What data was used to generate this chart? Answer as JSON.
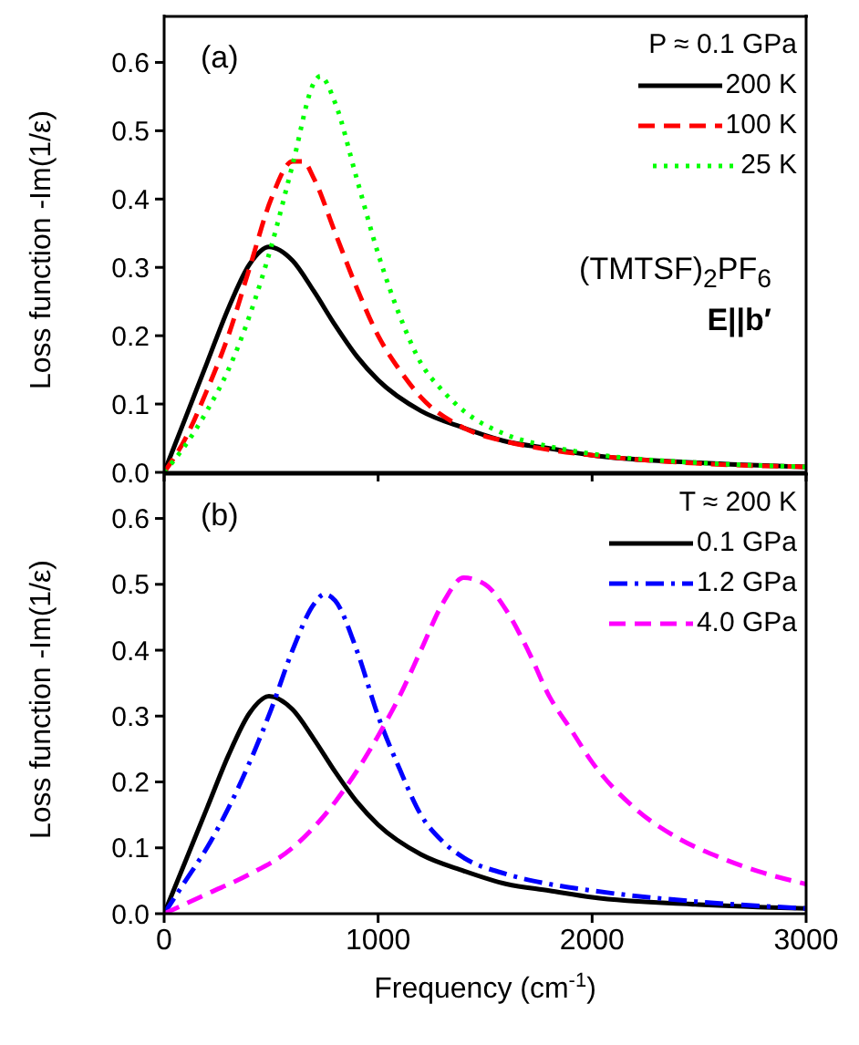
{
  "chart_data": [
    {
      "type": "line",
      "ylabel": "Loss function -Im(1/ε)",
      "legend_title": "P ≈ 0.1 GPa",
      "legend": "top right",
      "tick_labels": "y",
      "annotations": [
        "(a)",
        "(TMTSF)$_{2}$PF$_{6}$",
        "E||b′"
      ],
      "xlim": [
        0,
        3000
      ],
      "xticks": [
        0,
        1000,
        2000,
        3000
      ],
      "ylim": [
        0,
        0.67
      ],
      "yticks": [
        {
          "value": 0,
          "label": "0.0"
        },
        0.1,
        0.2,
        0.3,
        0.4,
        0.5,
        0.6
      ],
      "series": [
        {
          "name": "200 K",
          "color": "#000000",
          "line_style": "solid",
          "x": [
            0,
            100,
            200,
            300,
            400,
            490,
            600,
            700,
            800,
            900,
            1000,
            1200,
            1400,
            1600,
            1800,
            2000,
            2500,
            3000
          ],
          "values": [
            0,
            0.08,
            0.16,
            0.24,
            0.305,
            0.33,
            0.31,
            0.265,
            0.215,
            0.17,
            0.135,
            0.09,
            0.065,
            0.045,
            0.035,
            0.025,
            0.014,
            0.008
          ]
        },
        {
          "name": "100 K",
          "color": "#ff0000",
          "line_style": "dashed",
          "x": [
            0,
            100,
            200,
            300,
            400,
            500,
            600,
            650,
            700,
            800,
            900,
            1000,
            1100,
            1200,
            1400,
            1600,
            1800,
            2000,
            2500,
            3000
          ],
          "values": [
            0,
            0.05,
            0.12,
            0.2,
            0.3,
            0.4,
            0.455,
            0.455,
            0.43,
            0.35,
            0.27,
            0.2,
            0.15,
            0.11,
            0.065,
            0.045,
            0.033,
            0.025,
            0.013,
            0.008
          ]
        },
        {
          "name": "25 K",
          "color": "#00ff00",
          "line_style": "dotted",
          "x": [
            0,
            100,
            200,
            300,
            400,
            500,
            600,
            700,
            730,
            800,
            900,
            1000,
            1100,
            1200,
            1300,
            1400,
            1600,
            1800,
            2000,
            2500,
            3000
          ],
          "values": [
            0,
            0.04,
            0.09,
            0.15,
            0.23,
            0.33,
            0.45,
            0.57,
            0.58,
            0.54,
            0.43,
            0.32,
            0.23,
            0.16,
            0.12,
            0.09,
            0.055,
            0.038,
            0.027,
            0.014,
            0.008
          ]
        }
      ]
    },
    {
      "type": "line",
      "xlabel": "Frequency (cm$^{-1}$)",
      "ylabel": "Loss function -Im(1/ε)",
      "legend_title": "T ≈ 200 K",
      "legend": "top right",
      "annotations": [
        "(b)"
      ],
      "xlim": [
        0,
        3000
      ],
      "xticks": [
        0,
        1000,
        2000,
        3000
      ],
      "ylim": [
        0,
        0.67
      ],
      "yticks": [
        {
          "value": 0,
          "label": "0.0"
        },
        0.1,
        0.2,
        0.3,
        0.4,
        0.5,
        0.6
      ],
      "series": [
        {
          "name": "0.1 GPa",
          "color": "#000000",
          "line_style": "solid",
          "x": [
            0,
            100,
            200,
            300,
            400,
            490,
            600,
            700,
            800,
            900,
            1000,
            1200,
            1400,
            1600,
            1800,
            2000,
            2500,
            3000
          ],
          "values": [
            0,
            0.08,
            0.16,
            0.24,
            0.305,
            0.33,
            0.31,
            0.265,
            0.215,
            0.17,
            0.135,
            0.09,
            0.065,
            0.045,
            0.035,
            0.025,
            0.014,
            0.008
          ]
        },
        {
          "name": "1.2 GPa",
          "color": "#0000ff",
          "line_style": "dashdot",
          "x": [
            0,
            100,
            200,
            300,
            400,
            500,
            600,
            700,
            750,
            800,
            900,
            1000,
            1100,
            1200,
            1300,
            1400,
            1600,
            1800,
            2000,
            2500,
            3000
          ],
          "values": [
            0,
            0.05,
            0.1,
            0.16,
            0.23,
            0.31,
            0.4,
            0.47,
            0.485,
            0.475,
            0.4,
            0.3,
            0.22,
            0.15,
            0.11,
            0.085,
            0.06,
            0.045,
            0.035,
            0.018,
            0.008
          ]
        },
        {
          "name": "4.0 GPa",
          "color": "#ff00ff",
          "line_style": "dashed",
          "x": [
            0,
            200,
            400,
            600,
            800,
            1000,
            1100,
            1200,
            1300,
            1400,
            1500,
            1600,
            1700,
            1800,
            1900,
            2000,
            2200,
            2400,
            2600,
            2800,
            3000
          ],
          "values": [
            0,
            0.03,
            0.06,
            0.1,
            0.17,
            0.27,
            0.33,
            0.4,
            0.47,
            0.51,
            0.5,
            0.46,
            0.4,
            0.33,
            0.28,
            0.23,
            0.16,
            0.115,
            0.085,
            0.062,
            0.045
          ]
        }
      ]
    }
  ]
}
